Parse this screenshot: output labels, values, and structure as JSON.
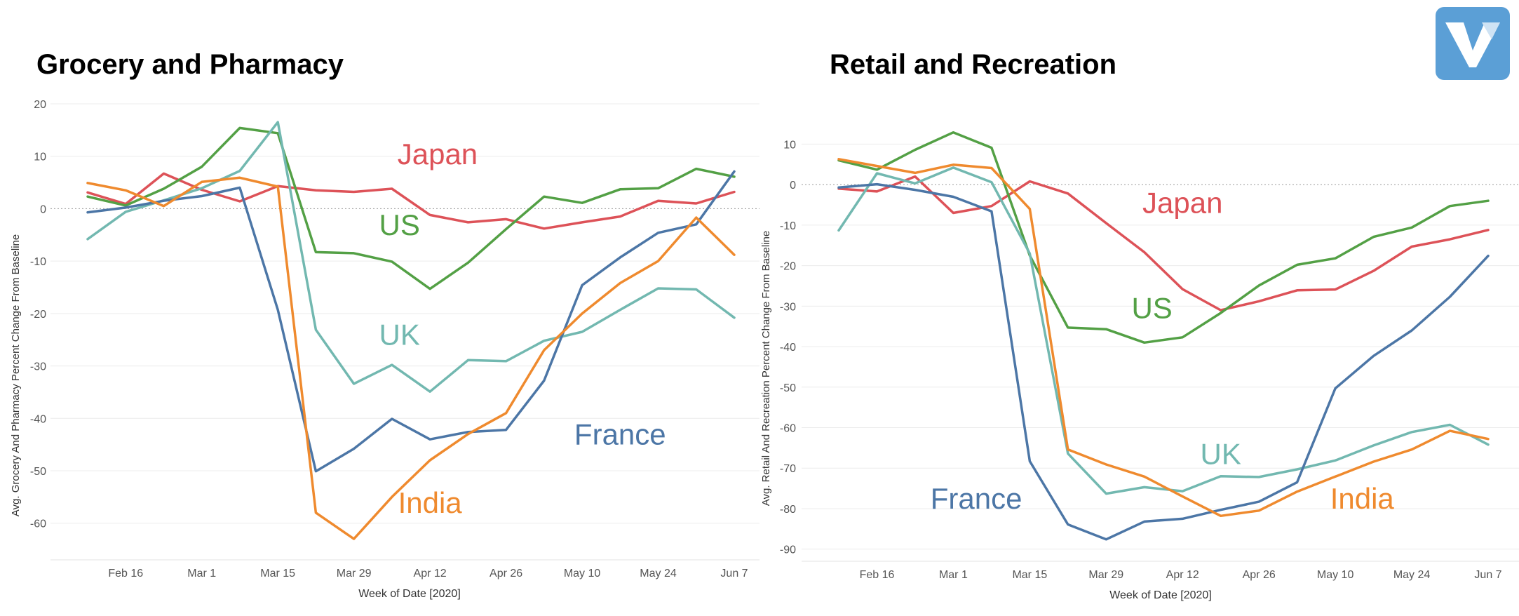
{
  "colors": {
    "Japan": "#dd5258",
    "US": "#53a045",
    "UK": "#72b8b0",
    "France": "#4c76a6",
    "India": "#ef8a2e",
    "grid": "#ececec",
    "zero": "#9a9a9a",
    "axis_text": "#555555",
    "logo": "#5b9fd6"
  },
  "logo": {
    "icon": "v-logo-icon"
  },
  "chart_data": [
    {
      "type": "line",
      "title": "Grocery and Pharmacy",
      "xlabel": "Week of Date [2020]",
      "ylabel": "Avg. Grocery And Pharmacy Percent Change From Baseline",
      "ylim": [
        -67,
        20
      ],
      "yticks": [
        20,
        10,
        0,
        -10,
        -20,
        -30,
        -40,
        -50,
        -60
      ],
      "x_count": 18,
      "xtick_labels": [
        {
          "i": 1,
          "label": "Feb 16"
        },
        {
          "i": 3,
          "label": "Mar 1"
        },
        {
          "i": 5,
          "label": "Mar 15"
        },
        {
          "i": 7,
          "label": "Mar 29"
        },
        {
          "i": 9,
          "label": "Apr 12"
        },
        {
          "i": 11,
          "label": "Apr 26"
        },
        {
          "i": 13,
          "label": "May 10"
        },
        {
          "i": 15,
          "label": "May 24"
        },
        {
          "i": 17,
          "label": "Jun 7"
        }
      ],
      "grid": true,
      "series": [
        {
          "name": "Japan",
          "values": [
            3.1,
            0.9,
            6.7,
            3.6,
            1.4,
            4.3,
            3.5,
            3.2,
            3.8,
            -1.2,
            -2.6,
            -2.0,
            -3.8,
            -2.6,
            -1.5,
            1.5,
            1.0,
            3.2
          ],
          "label": {
            "i": 9.2,
            "y": 8.5,
            "anchor": "middle"
          }
        },
        {
          "name": "US",
          "values": [
            2.3,
            0.6,
            3.8,
            8.0,
            15.4,
            14.4,
            -8.3,
            -8.5,
            -10.1,
            -15.3,
            -10.3,
            -3.9,
            2.3,
            1.1,
            3.7,
            3.9,
            7.6,
            6.1
          ],
          "label": {
            "i": 8.2,
            "y": -5.0,
            "anchor": "middle"
          }
        },
        {
          "name": "UK",
          "values": [
            -5.8,
            -0.6,
            1.6,
            3.9,
            7.2,
            16.5,
            -23.1,
            -33.4,
            -29.8,
            -34.9,
            -28.9,
            -29.1,
            -25.2,
            -23.5,
            -19.3,
            -15.2,
            -15.4,
            -20.8
          ],
          "label": {
            "i": 8.2,
            "y": -26.0,
            "anchor": "middle"
          }
        },
        {
          "name": "France",
          "values": [
            -0.7,
            0.2,
            1.5,
            2.4,
            4.0,
            -19.3,
            -50.1,
            -45.8,
            -40.1,
            -44.0,
            -42.6,
            -42.2,
            -32.8,
            -14.6,
            -9.3,
            -4.6,
            -3.0,
            7.1
          ],
          "label": {
            "i": 14.0,
            "y": -45.0,
            "anchor": "middle"
          }
        },
        {
          "name": "India",
          "values": [
            4.9,
            3.5,
            0.5,
            5.1,
            5.9,
            4.2,
            -58.0,
            -63.0,
            -55.0,
            -48.0,
            -43.0,
            -39.0,
            -27.0,
            -20.0,
            -14.2,
            -10.0,
            -1.7,
            -8.8
          ],
          "label": {
            "i": 9.0,
            "y": -58.0,
            "anchor": "middle"
          }
        }
      ]
    },
    {
      "type": "line",
      "title": "Retail and Recreation",
      "xlabel": "Week of Date [2020]",
      "ylabel": "Avg. Retail And Recreation Percent Change From Baseline",
      "ylim": [
        -93,
        17
      ],
      "yticks": [
        10,
        0,
        -10,
        -20,
        -30,
        -40,
        -50,
        -60,
        -70,
        -80,
        -90
      ],
      "x_count": 18,
      "xtick_labels": [
        {
          "i": 1,
          "label": "Feb 16"
        },
        {
          "i": 3,
          "label": "Mar 1"
        },
        {
          "i": 5,
          "label": "Mar 15"
        },
        {
          "i": 7,
          "label": "Mar 29"
        },
        {
          "i": 9,
          "label": "Apr 12"
        },
        {
          "i": 11,
          "label": "Apr 26"
        },
        {
          "i": 13,
          "label": "May 10"
        },
        {
          "i": 15,
          "label": "May 24"
        },
        {
          "i": 17,
          "label": "Jun 7"
        }
      ],
      "grid": true,
      "series": [
        {
          "name": "Japan",
          "values": [
            -1.0,
            -1.7,
            2.0,
            -7.0,
            -5.3,
            0.8,
            -2.2,
            -9.5,
            -16.7,
            -25.8,
            -31.0,
            -28.8,
            -26.1,
            -25.9,
            -21.3,
            -15.3,
            -13.5,
            -11.2
          ],
          "label": {
            "i": 9.0,
            "y": -7.0,
            "anchor": "middle"
          }
        },
        {
          "name": "US",
          "values": [
            6.0,
            3.7,
            8.6,
            12.9,
            9.1,
            -17.5,
            -35.3,
            -35.7,
            -39.0,
            -37.7,
            -31.7,
            -24.9,
            -19.8,
            -18.2,
            -12.9,
            -10.6,
            -5.3,
            -4.0
          ],
          "label": {
            "i": 8.2,
            "y": -33.0,
            "anchor": "middle"
          }
        },
        {
          "name": "UK",
          "values": [
            -11.3,
            2.8,
            0.3,
            4.2,
            0.6,
            -17.0,
            -66.4,
            -76.3,
            -74.7,
            -75.7,
            -72.0,
            -72.2,
            -70.3,
            -68.1,
            -64.4,
            -61.1,
            -59.3,
            -64.2
          ],
          "label": {
            "i": 10.0,
            "y": -69.0,
            "anchor": "middle"
          }
        },
        {
          "name": "France",
          "values": [
            -0.7,
            0.1,
            -1.3,
            -3.0,
            -6.6,
            -68.3,
            -83.9,
            -87.6,
            -83.2,
            -82.5,
            -80.3,
            -78.3,
            -73.5,
            -50.3,
            -42.3,
            -36.0,
            -27.7,
            -17.6
          ],
          "label": {
            "i": 3.6,
            "y": -80.0,
            "anchor": "middle"
          }
        },
        {
          "name": "India",
          "values": [
            6.3,
            4.6,
            2.9,
            4.9,
            4.1,
            -6.0,
            -65.4,
            -69.1,
            -72.1,
            -77.0,
            -81.8,
            -80.5,
            -75.8,
            -72.1,
            -68.4,
            -65.4,
            -60.8,
            -62.8
          ],
          "label": {
            "i": 13.7,
            "y": -80.0,
            "anchor": "middle"
          }
        }
      ]
    }
  ]
}
